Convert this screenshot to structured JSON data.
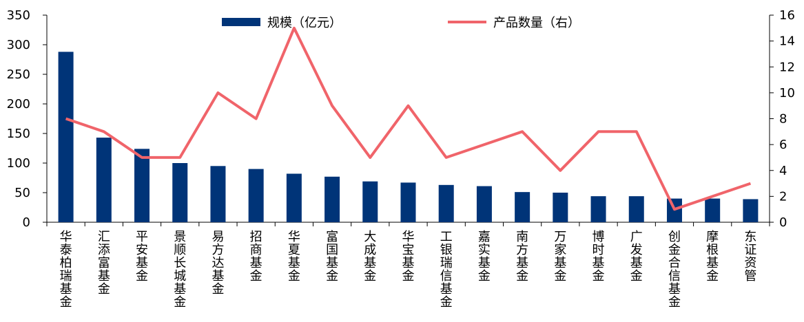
{
  "chart_data": {
    "type": "bar",
    "categories": [
      "华泰柏瑞基金",
      "汇添富基金",
      "平安基金",
      "景顺长城基金",
      "易方达基金",
      "招商基金",
      "华夏基金",
      "富国基金",
      "大成基金",
      "华宝基金",
      "工银瑞信基金",
      "嘉实基金",
      "南方基金",
      "万家基金",
      "博时基金",
      "广发基金",
      "创金合信基金",
      "摩根基金",
      "东证资管"
    ],
    "series": [
      {
        "name": "规模（亿元）",
        "type": "bar",
        "axis": "left",
        "color": "#003478",
        "values": [
          288,
          143,
          124,
          100,
          95,
          90,
          82,
          77,
          69,
          67,
          63,
          61,
          51,
          50,
          44,
          44,
          40,
          40,
          39
        ]
      },
      {
        "name": "产品数量（右）",
        "type": "line",
        "axis": "right",
        "color": "#F0646A",
        "values": [
          8,
          7,
          5,
          5,
          10,
          8,
          15,
          9,
          5,
          9,
          5,
          6,
          7,
          4,
          7,
          7,
          1,
          2,
          3
        ]
      }
    ],
    "left_axis": {
      "ylim": [
        0,
        350
      ],
      "ticks": [
        "0",
        "50",
        "100",
        "150",
        "200",
        "250",
        "300",
        "350"
      ]
    },
    "right_axis": {
      "ylim": [
        0,
        16
      ],
      "ticks": [
        "0",
        "2",
        "4",
        "6",
        "8",
        "10",
        "12",
        "14",
        "16"
      ]
    },
    "legend_position": "top",
    "grid": false
  }
}
